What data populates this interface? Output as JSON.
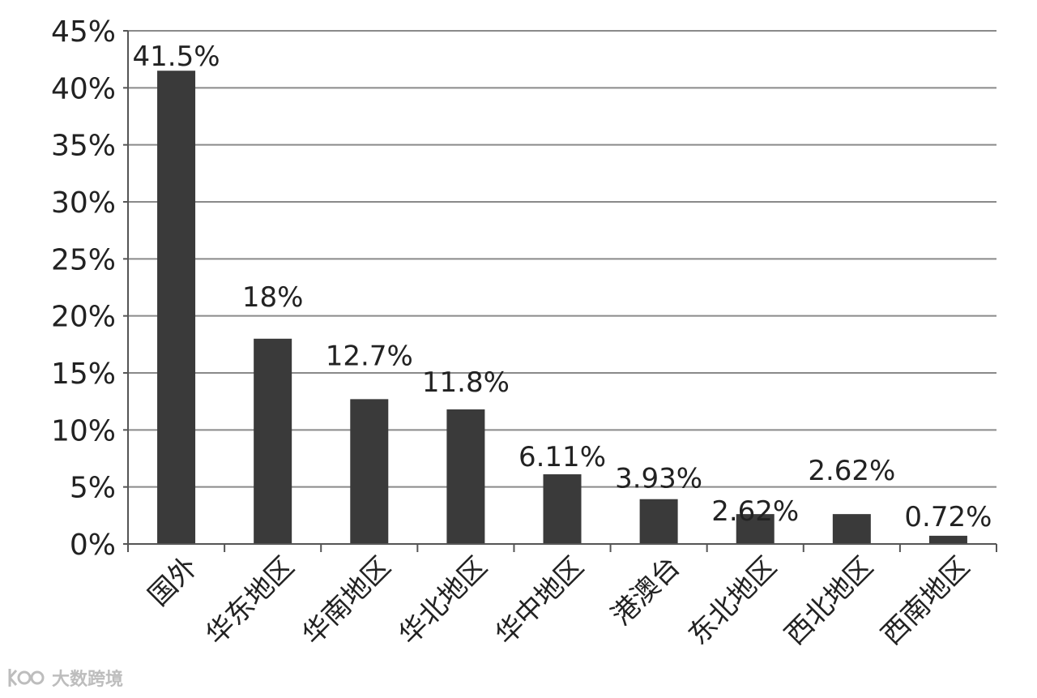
{
  "chart_data": {
    "type": "bar",
    "categories": [
      "国外",
      "华东地区",
      "华南地区",
      "华北地区",
      "华中地区",
      "港澳台",
      "东北地区",
      "西北地区",
      "西南地区"
    ],
    "values": [
      41.5,
      18,
      12.7,
      11.8,
      6.11,
      3.93,
      2.62,
      2.62,
      0.72
    ],
    "data_labels": [
      "41.5%",
      "18%",
      "12.7%",
      "11.8%",
      "6.11%",
      "3.93%",
      "2.62%",
      "2.62%",
      "0.72%"
    ],
    "ylim": [
      0,
      45
    ],
    "yticks": [
      0,
      5,
      10,
      15,
      20,
      25,
      30,
      35,
      40,
      45
    ],
    "ytick_labels": [
      "0%",
      "5%",
      "10%",
      "15%",
      "20%",
      "25%",
      "30%",
      "35%",
      "40%",
      "45%"
    ],
    "grid": true,
    "legend": "none",
    "bar_color": "#3a3a3a",
    "grid_color": "#8a8a8a"
  },
  "watermark": {
    "text": "大数跨境",
    "logo_icon": "kwai-logo-icon"
  }
}
